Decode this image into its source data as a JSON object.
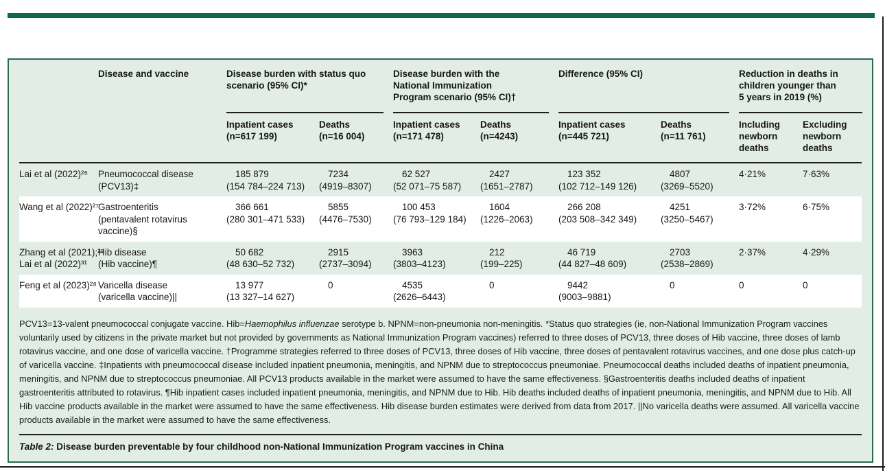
{
  "header": {
    "disease_and_vaccine": "Disease and vaccine",
    "group_status_quo": {
      "l1": "Disease burden with status quo",
      "l2": "scenario (95% CI)*",
      "l3": ""
    },
    "group_nip": {
      "l1": "Disease burden with the",
      "l2": "National Immunization",
      "l3": "Program scenario (95% CI)†"
    },
    "group_difference": {
      "l1": "Difference (95% CI)",
      "l2": "",
      "l3": ""
    },
    "group_reduction": {
      "l1": "Reduction in deaths in",
      "l2": "children younger than",
      "l3": "5 years in 2019 (%)"
    },
    "sub": {
      "sq_inpatient": {
        "l1": "Inpatient cases",
        "l2": "(n=617 199)",
        "l3": ""
      },
      "sq_deaths": {
        "l1": "Deaths",
        "l2": "(n=16 004)",
        "l3": ""
      },
      "nip_inpatient": {
        "l1": "Inpatient cases",
        "l2": "(n=171 478)",
        "l3": ""
      },
      "nip_deaths": {
        "l1": "Deaths",
        "l2": "(n=4243)",
        "l3": ""
      },
      "diff_inpatient": {
        "l1": "Inpatient cases",
        "l2": "(n=445 721)",
        "l3": ""
      },
      "diff_deaths": {
        "l1": "Deaths",
        "l2": "(n=11 761)",
        "l3": ""
      },
      "including": {
        "l1": "Including",
        "l2": "newborn",
        "l3": "deaths"
      },
      "excluding": {
        "l1": "Excluding",
        "l2": "newborn",
        "l3": "deaths"
      }
    }
  },
  "rows": [
    {
      "study1": "Lai et al (2022)²⁶",
      "study2": "",
      "d1": "Pneumococcal disease",
      "d2": "(PCV13)‡",
      "d3": "",
      "sq_in_est": "185 879",
      "sq_in_ci": "(154 784–224 713)",
      "sq_d_est": "7234",
      "sq_d_ci": "(4919–8307)",
      "nip_in_est": "62 527",
      "nip_in_ci": "(52 071–75 587)",
      "nip_d_est": "2427",
      "nip_d_ci": "(1651–2787)",
      "diff_in_est": "123 352",
      "diff_in_ci": "(102 712–149 126)",
      "diff_d_est": "4807",
      "diff_d_ci": "(3269–5520)",
      "incl": "4·21%",
      "excl": "7·63%"
    },
    {
      "study1": "Wang et al (2022)²⁷",
      "study2": "",
      "d1": "Gastroenteritis",
      "d2": "(pentavalent rotavirus",
      "d3": "vaccine)§",
      "sq_in_est": "366 661",
      "sq_in_ci": "(280 301–471 533)",
      "sq_d_est": "5855",
      "sq_d_ci": "(4476–7530)",
      "nip_in_est": "100 453",
      "nip_in_ci": "(76 793–129 184)",
      "nip_d_est": "1604",
      "nip_d_ci": "(1226–2063)",
      "diff_in_est": "266 208",
      "diff_in_ci": "(203 508–342 349)",
      "diff_d_est": "4251",
      "diff_d_ci": "(3250–5467)",
      "incl": "3·72%",
      "excl": "6·75%"
    },
    {
      "study1": "Zhang et al (2021);²⁵",
      "study2": "Lai et al (2022)³¹",
      "d1": "Hib disease",
      "d2": "(Hib vaccine)¶",
      "d3": "",
      "sq_in_est": "50 682",
      "sq_in_ci": "(48 630–52 732)",
      "sq_d_est": "2915",
      "sq_d_ci": "(2737–3094)",
      "nip_in_est": "3963",
      "nip_in_ci": "(3803–4123)",
      "nip_d_est": "212",
      "nip_d_ci": "(199–225)",
      "diff_in_est": "46 719",
      "diff_in_ci": "(44 827–48 609)",
      "diff_d_est": "2703",
      "diff_d_ci": "(2538–2869)",
      "incl": "2·37%",
      "excl": "4·29%"
    },
    {
      "study1": "Feng et al (2023)²⁸",
      "study2": "",
      "d1": "Varicella disease",
      "d2": "(varicella vaccine)||",
      "d3": "",
      "sq_in_est": "13 977",
      "sq_in_ci": "(13 327–14 627)",
      "sq_d_est": "0",
      "sq_d_ci": "",
      "nip_in_est": "4535",
      "nip_in_ci": "(2626–6443)",
      "nip_d_est": "0",
      "nip_d_ci": "",
      "diff_in_est": "9442",
      "diff_in_ci": "(9003–9881)",
      "diff_d_est": "0",
      "diff_d_ci": "",
      "incl": "0",
      "excl": "0"
    }
  ],
  "footnote": {
    "segments": [
      {
        "text": "PCV13=13-valent pneumococcal conjugate vaccine. Hib=",
        "cls": ""
      },
      {
        "text": "Haemophilus influenzae",
        "cls": "it"
      },
      {
        "text": " serotype b. NPNM=non-pneumonia non-meningitis. *Status quo strategies (ie, non-National Immunization Program vaccines voluntarily used by citizens in the private market but not provided by governments as National Immunization Program vaccines) referred to three doses of PCV13, three doses of Hib vaccine, three doses of lamb rotavirus vaccine, and one dose of varicella vaccine. †Programme strategies referred to three doses of PCV13, three doses of Hib vaccine, three doses of pentavalent rotavirus vaccines, and one dose plus catch-up of varicella vaccine. ‡Inpatients with pneumococcal disease included inpatient pneumonia, meningitis, and NPNM due to streptococcus pneumoniae. Pneumococcal deaths included deaths of inpatient pneumonia, meningitis, and NPNM due to streptococcus pneumoniae. All PCV13 products available in the market were assumed to have the same effectiveness. §Gastroenteritis deaths included deaths of inpatient gastroenteritis attributed to rotavirus. ¶Hib inpatient cases included inpatient pneumonia, meningitis, and NPNM due to Hib. Hib deaths included deaths of inpatient pneumonia, meningitis, and NPNM due to Hib. All Hib vaccine products available in the market were assumed to have the same effectiveness. Hib disease burden estimates were derived from data from 2017. ||No varicella deaths were assumed. All varicella vaccine products available in the market were assumed to have the same effectiveness.",
        "cls": ""
      }
    ]
  },
  "caption": {
    "segments": [
      {
        "text": "Table 2:",
        "cls": "bi"
      },
      {
        "text": " Disease burden preventable by four childhood non-National Immunization Program vaccines in China",
        "cls": "b"
      }
    ]
  },
  "colors": {
    "lancet_green": "#0b6b43",
    "panel_border_green": "#2a6a4e",
    "panel_mint": "#e2ede6",
    "rule_black": "#1f1f1f"
  }
}
